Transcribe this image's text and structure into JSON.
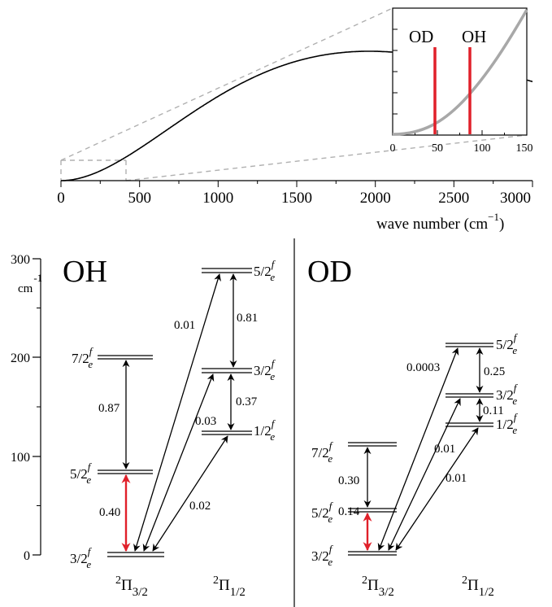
{
  "spectrum": {
    "x_axis_label": "wave number (cm",
    "x_axis_label_exp": "−1",
    "x_axis_label_close": ")",
    "x_ticks": [
      "0",
      "500",
      "1000",
      "1500",
      "2000",
      "2500",
      "3000"
    ],
    "inset": {
      "x_ticks": [
        "0",
        "50",
        "100",
        "150"
      ],
      "lines": [
        {
          "label": "OD",
          "x": 50,
          "color": "#e0202a"
        },
        {
          "label": "OH",
          "x": 85,
          "color": "#e0202a"
        }
      ]
    }
  },
  "energy_axis": {
    "unit": "cm",
    "unit_exp": "-1",
    "ticks": [
      "300",
      "200",
      "100",
      "0"
    ]
  },
  "panels": {
    "oh": {
      "title": "OH",
      "columns": [
        {
          "label": "2",
          "sub": "Π",
          "subsub": "3/2"
        },
        {
          "label": "2",
          "sub": "Π",
          "subsub": "1/2"
        }
      ],
      "levels": [
        {
          "j": "3/2",
          "f": "f",
          "e": "e"
        },
        {
          "j": "5/2",
          "f": "f",
          "e": "e"
        },
        {
          "j": "7/2",
          "f": "f",
          "e": "e"
        },
        {
          "j": "1/2",
          "f": "f",
          "e": "e"
        },
        {
          "j": "3/2",
          "f": "f",
          "e": "e"
        },
        {
          "j": "5/2",
          "f": "f",
          "e": "e"
        }
      ],
      "transitions": [
        "0.40",
        "0.87",
        "0.02",
        "0.03",
        "0.01",
        "0.37",
        "0.81"
      ]
    },
    "od": {
      "title": "OD",
      "columns": [
        {
          "label": "2",
          "sub": "Π",
          "subsub": "3/2"
        },
        {
          "label": "2",
          "sub": "Π",
          "subsub": "1/2"
        }
      ],
      "levels": [
        {
          "j": "3/2",
          "f": "f",
          "e": "e"
        },
        {
          "j": "5/2",
          "f": "f",
          "e": "e"
        },
        {
          "j": "7/2",
          "f": "f",
          "e": "e"
        },
        {
          "j": "1/2",
          "f": "f",
          "e": "e"
        },
        {
          "j": "3/2",
          "f": "f",
          "e": "e"
        },
        {
          "j": "5/2",
          "f": "f",
          "e": "e"
        }
      ],
      "transitions": [
        "0.14",
        "0.30",
        "0.01",
        "0.01",
        "0.0003",
        "0.11",
        "0.25"
      ]
    }
  },
  "colors": {
    "highlight": "#e0202a",
    "curve": "#000000",
    "inset_curve": "#a8a8a8",
    "dashed": "#b0b0b0"
  }
}
